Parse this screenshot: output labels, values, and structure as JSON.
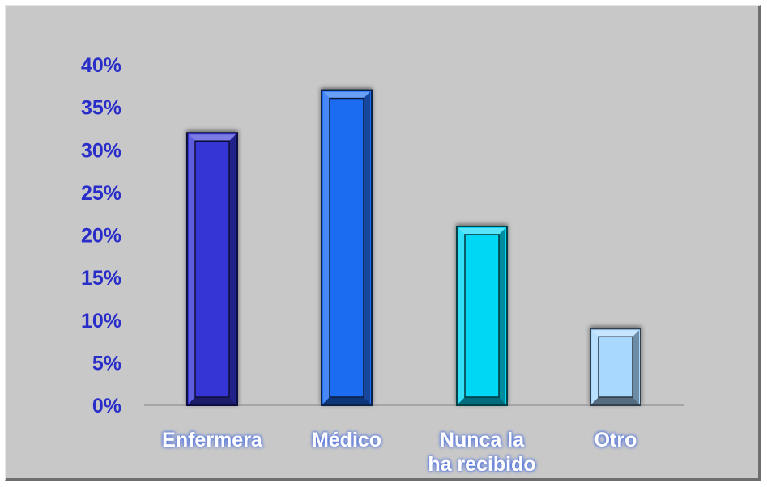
{
  "chart_data": {
    "type": "bar",
    "categories": [
      "Enfermera",
      "Médico",
      "Nunca la ha recibido",
      "Otro"
    ],
    "category_lines": [
      [
        "Enfermera"
      ],
      [
        "Médico"
      ],
      [
        "Nunca la",
        "ha recibido"
      ],
      [
        "Otro"
      ]
    ],
    "values": [
      32,
      37,
      21,
      9
    ],
    "colors": [
      "#3535d6",
      "#1c6cf2",
      "#00d7f5",
      "#a9d8ff"
    ],
    "ylim": [
      0,
      40
    ],
    "yticks": [
      "0%",
      "5%",
      "10%",
      "15%",
      "20%",
      "25%",
      "30%",
      "35%",
      "40%"
    ],
    "ytick_values": [
      0,
      5,
      10,
      15,
      20,
      25,
      30,
      35,
      40
    ],
    "title": "",
    "xlabel": "",
    "ylabel": "",
    "grid": false,
    "legend": "none",
    "background_color": "#c8c8c8",
    "tick_label_color": "#2a2ec8",
    "category_label_color": "#ffffff"
  }
}
